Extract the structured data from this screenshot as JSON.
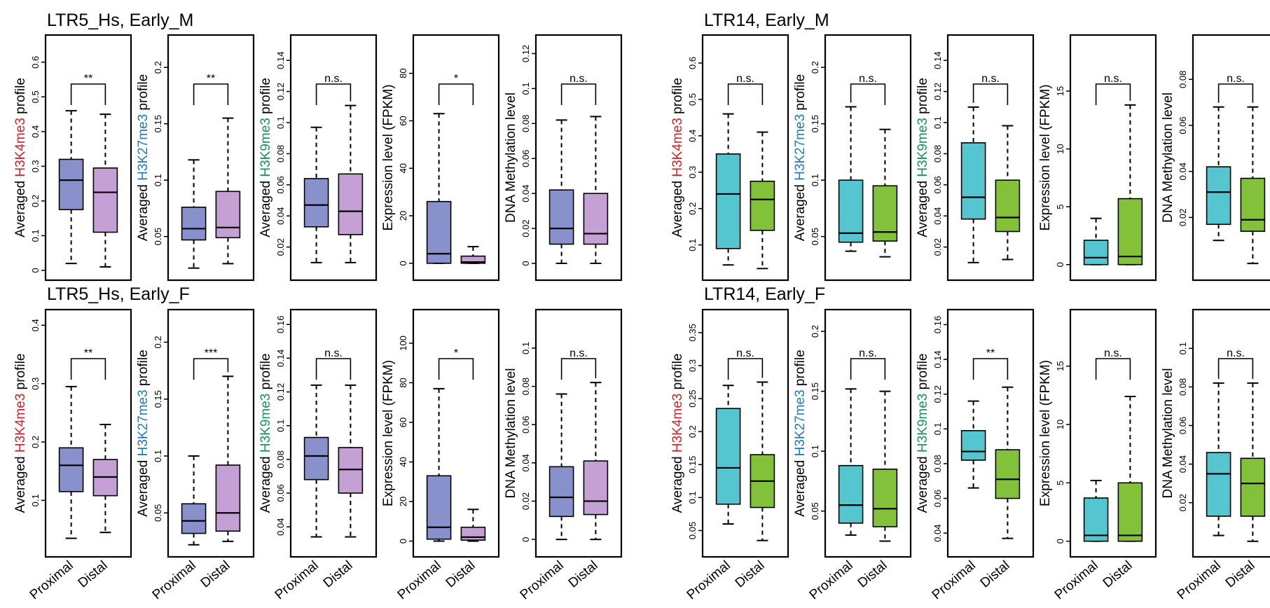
{
  "colors": {
    "ltr5_box": "#8891cc",
    "ltr5_distal_box": "#c4a0d4",
    "ltr14_proximal_box": "#55c6cf",
    "ltr14_distal_box": "#83c13a",
    "h3k4me3": "#d42128",
    "h3k27me3": "#1f7bbf",
    "h3k9me3": "#149457"
  },
  "groups": [
    "Proximal",
    "Distal"
  ],
  "chart_data": [
    {
      "title": "LTR5_Hs, Early_M",
      "type": "box",
      "palette": [
        "#8891cc",
        "#c4a0d4"
      ],
      "panels": [
        {
          "ylabel_prefix": "Averaged ",
          "ylabel_mark": "H3K4me3",
          "ylabel_suffix": " profile",
          "mark_color": "#d42128",
          "ylim": [
            0,
            0.65
          ],
          "ticks": [
            0,
            0.1,
            0.2,
            0.3,
            0.4,
            0.5,
            0.6
          ],
          "tick_labels": [
            "0",
            "0.1",
            "0.2",
            "0.3",
            "0.4",
            "0.5",
            "0.6"
          ],
          "sig": "**",
          "boxes": [
            {
              "whislo": 0.02,
              "q1": 0.175,
              "med": 0.26,
              "q3": 0.32,
              "whishi": 0.46
            },
            {
              "whislo": 0.01,
              "q1": 0.11,
              "med": 0.225,
              "q3": 0.295,
              "whishi": 0.45
            }
          ]
        },
        {
          "ylabel_prefix": "Averaged ",
          "ylabel_mark": "H3K27me3",
          "ylabel_suffix": " profile",
          "mark_color": "#1f7bbf",
          "ylim": [
            0.02,
            0.22
          ],
          "ticks": [
            0.05,
            0.1,
            0.15,
            0.2
          ],
          "tick_labels": [
            "0.05",
            "0.1",
            "0.15",
            "0.2"
          ],
          "sig": "**",
          "boxes": [
            {
              "whislo": 0.022,
              "q1": 0.047,
              "med": 0.057,
              "q3": 0.076,
              "whishi": 0.118
            },
            {
              "whislo": 0.026,
              "q1": 0.049,
              "med": 0.058,
              "q3": 0.09,
              "whishi": 0.155
            }
          ]
        },
        {
          "ylabel_prefix": "Averaged ",
          "ylabel_mark": "H3K9me3",
          "ylabel_suffix": " profile",
          "mark_color": "#149457",
          "ylim": [
            0.005,
            0.15
          ],
          "ticks": [
            0.02,
            0.04,
            0.06,
            0.08,
            0.1,
            0.12,
            0.14
          ],
          "tick_labels": [
            "0.02",
            "0.04",
            "0.06",
            "0.08",
            "0.1",
            "0.12",
            "0.14"
          ],
          "sig": "n.s.",
          "boxes": [
            {
              "whislo": 0.01,
              "q1": 0.033,
              "med": 0.047,
              "q3": 0.064,
              "whishi": 0.097
            },
            {
              "whislo": 0.01,
              "q1": 0.028,
              "med": 0.043,
              "q3": 0.067,
              "whishi": 0.111
            }
          ]
        },
        {
          "ylabel_prefix": "",
          "ylabel_mark": "",
          "ylabel_suffix": "Expression level (FPKM)",
          "mark_color": "#000000",
          "ylim": [
            -3,
            92
          ],
          "ticks": [
            0,
            20,
            40,
            60,
            80
          ],
          "tick_labels": [
            "0",
            "20",
            "40",
            "60",
            "80"
          ],
          "sig": "*",
          "boxes": [
            {
              "whislo": 0,
              "q1": 0,
              "med": 4,
              "q3": 26,
              "whishi": 63
            },
            {
              "whislo": 0,
              "q1": 0,
              "med": 0.5,
              "q3": 3,
              "whishi": 7
            }
          ]
        },
        {
          "ylabel_prefix": "",
          "ylabel_mark": "",
          "ylabel_suffix": "DNA Methylation level",
          "mark_color": "#000000",
          "ylim": [
            -0.004,
            0.125
          ],
          "ticks": [
            0,
            0.02,
            0.04,
            0.06,
            0.08,
            0.1,
            0.12
          ],
          "tick_labels": [
            "0",
            "0.02",
            "0.04",
            "0.06",
            "0.08",
            "0.1",
            "0.12"
          ],
          "sig": "n.s.",
          "boxes": [
            {
              "whislo": 0,
              "q1": 0.011,
              "med": 0.02,
              "q3": 0.042,
              "whishi": 0.082
            },
            {
              "whislo": 0,
              "q1": 0.011,
              "med": 0.017,
              "q3": 0.04,
              "whishi": 0.084
            }
          ]
        }
      ]
    },
    {
      "title": "LTR14, Early_M",
      "type": "box",
      "palette": [
        "#55c6cf",
        "#83c13a"
      ],
      "panels": [
        {
          "ylabel_prefix": "Averaged ",
          "ylabel_mark": "H3K4me3",
          "ylabel_suffix": " profile",
          "mark_color": "#d42128",
          "ylim": [
            0.03,
            0.65
          ],
          "ticks": [
            0.1,
            0.2,
            0.3,
            0.4,
            0.5,
            0.6
          ],
          "tick_labels": [
            "0.1",
            "0.2",
            "0.3",
            "0.4",
            "0.5",
            "0.6"
          ],
          "sig": "n.s.",
          "boxes": [
            {
              "whislo": 0.045,
              "q1": 0.09,
              "med": 0.24,
              "q3": 0.35,
              "whishi": 0.46
            },
            {
              "whislo": 0.035,
              "q1": 0.14,
              "med": 0.225,
              "q3": 0.275,
              "whishi": 0.41
            }
          ]
        },
        {
          "ylabel_prefix": "Averaged ",
          "ylabel_mark": "H3K27me3",
          "ylabel_suffix": " profile",
          "mark_color": "#1f7bbf",
          "ylim": [
            0.02,
            0.22
          ],
          "ticks": [
            0.05,
            0.1,
            0.15,
            0.2
          ],
          "tick_labels": [
            "0.05",
            "0.1",
            "0.15",
            "0.2"
          ],
          "sig": "n.s.",
          "boxes": [
            {
              "whislo": 0.037,
              "q1": 0.045,
              "med": 0.053,
              "q3": 0.1,
              "whishi": 0.165
            },
            {
              "whislo": 0.032,
              "q1": 0.046,
              "med": 0.054,
              "q3": 0.095,
              "whishi": 0.145
            }
          ]
        },
        {
          "ylabel_prefix": "Averaged ",
          "ylabel_mark": "H3K9me3",
          "ylabel_suffix": " profile",
          "mark_color": "#149457",
          "ylim": [
            0.005,
            0.15
          ],
          "ticks": [
            0.02,
            0.04,
            0.06,
            0.08,
            0.1,
            0.12,
            0.14
          ],
          "tick_labels": [
            "0.02",
            "0.04",
            "0.06",
            "0.08",
            "0.1",
            "0.12",
            "0.14"
          ],
          "sig": "n.s.",
          "boxes": [
            {
              "whislo": 0.01,
              "q1": 0.038,
              "med": 0.052,
              "q3": 0.087,
              "whishi": 0.11
            },
            {
              "whislo": 0.012,
              "q1": 0.03,
              "med": 0.039,
              "q3": 0.063,
              "whishi": 0.098
            }
          ]
        },
        {
          "ylabel_prefix": "",
          "ylabel_mark": "",
          "ylabel_suffix": "Expression level (FPKM)",
          "mark_color": "#000000",
          "ylim": [
            -0.5,
            19
          ],
          "ticks": [
            0,
            5,
            10,
            15
          ],
          "tick_labels": [
            "0",
            "5",
            "10",
            "15"
          ],
          "sig": "n.s.",
          "boxes": [
            {
              "whislo": 0,
              "q1": 0,
              "med": 0.6,
              "q3": 2.1,
              "whishi": 4
            },
            {
              "whislo": 0,
              "q1": 0,
              "med": 0.7,
              "q3": 5.7,
              "whishi": 13.8
            }
          ]
        },
        {
          "ylabel_prefix": "",
          "ylabel_mark": "",
          "ylabel_suffix": "DNA Methylation level",
          "mark_color": "#000000",
          "ylim": [
            -0.003,
            0.095
          ],
          "ticks": [
            0.02,
            0.04,
            0.06,
            0.08
          ],
          "tick_labels": [
            "0.02",
            "0.04",
            "0.06",
            "0.08"
          ],
          "sig": "n.s.",
          "boxes": [
            {
              "whislo": 0.01,
              "q1": 0.017,
              "med": 0.031,
              "q3": 0.042,
              "whishi": 0.068
            },
            {
              "whislo": 0,
              "q1": 0.014,
              "med": 0.019,
              "q3": 0.037,
              "whishi": 0.068
            }
          ]
        }
      ]
    },
    {
      "title": "LTR5_Hs, Early_F",
      "type": "box",
      "palette": [
        "#8891cc",
        "#c4a0d4"
      ],
      "panels": [
        {
          "ylabel_prefix": "Averaged ",
          "ylabel_mark": "H3K4me3",
          "ylabel_suffix": " profile",
          "mark_color": "#d42128",
          "ylim": [
            0.02,
            0.41
          ],
          "ticks": [
            0.1,
            0.2,
            0.3,
            0.4
          ],
          "tick_labels": [
            "0.1",
            "0.2",
            "0.3",
            "0.4"
          ],
          "sig": "**",
          "boxes": [
            {
              "whislo": 0.035,
              "q1": 0.115,
              "med": 0.16,
              "q3": 0.19,
              "whishi": 0.295
            },
            {
              "whislo": 0.045,
              "q1": 0.108,
              "med": 0.14,
              "q3": 0.17,
              "whishi": 0.23
            }
          ]
        },
        {
          "ylabel_prefix": "Averaged ",
          "ylabel_mark": "H3K27me3",
          "ylabel_suffix": " profile",
          "mark_color": "#1f7bbf",
          "ylim": [
            0.02,
            0.22
          ],
          "ticks": [
            0.05,
            0.1,
            0.15,
            0.2
          ],
          "tick_labels": [
            "0.05",
            "0.1",
            "0.15",
            "0.2"
          ],
          "sig": "***",
          "boxes": [
            {
              "whislo": 0.022,
              "q1": 0.032,
              "med": 0.043,
              "q3": 0.058,
              "whishi": 0.1
            },
            {
              "whislo": 0.025,
              "q1": 0.034,
              "med": 0.05,
              "q3": 0.092,
              "whishi": 0.17
            }
          ]
        },
        {
          "ylabel_prefix": "Averaged ",
          "ylabel_mark": "H3K9me3",
          "ylabel_suffix": " profile",
          "mark_color": "#149457",
          "ylim": [
            0.028,
            0.163
          ],
          "ticks": [
            0.04,
            0.06,
            0.08,
            0.1,
            0.12,
            0.14,
            0.16
          ],
          "tick_labels": [
            "0.04",
            "0.06",
            "0.08",
            "0.1",
            "0.12",
            "0.14",
            "0.16"
          ],
          "sig": "n.s.",
          "boxes": [
            {
              "whislo": 0.034,
              "q1": 0.068,
              "med": 0.082,
              "q3": 0.093,
              "whishi": 0.124
            },
            {
              "whislo": 0.034,
              "q1": 0.06,
              "med": 0.074,
              "q3": 0.087,
              "whishi": 0.124
            }
          ]
        },
        {
          "ylabel_prefix": "",
          "ylabel_mark": "",
          "ylabel_suffix": "Expression level (FPKM)",
          "mark_color": "#000000",
          "ylim": [
            -3,
            112
          ],
          "ticks": [
            0,
            20,
            40,
            60,
            80,
            100
          ],
          "tick_labels": [
            "0",
            "20",
            "40",
            "60",
            "80",
            "100"
          ],
          "sig": "*",
          "boxes": [
            {
              "whislo": 0,
              "q1": 1,
              "med": 7,
              "q3": 33,
              "whishi": 77
            },
            {
              "whislo": 0,
              "q1": 0.5,
              "med": 2,
              "q3": 7,
              "whishi": 16
            }
          ]
        },
        {
          "ylabel_prefix": "",
          "ylabel_mark": "",
          "ylabel_suffix": "DNA Methylation level",
          "mark_color": "#000000",
          "ylim": [
            -0.004,
            0.115
          ],
          "ticks": [
            0,
            0.02,
            0.04,
            0.06,
            0.08,
            0.1
          ],
          "tick_labels": [
            "0",
            "0.02",
            "0.04",
            "0.06",
            "0.08",
            "0.1"
          ],
          "sig": "n.s.",
          "boxes": [
            {
              "whislo": 0,
              "q1": 0.012,
              "med": 0.022,
              "q3": 0.038,
              "whishi": 0.076
            },
            {
              "whislo": 0,
              "q1": 0.013,
              "med": 0.02,
              "q3": 0.041,
              "whishi": 0.082
            }
          ]
        }
      ]
    },
    {
      "title": "LTR14, Early_F",
      "type": "box",
      "palette": [
        "#55c6cf",
        "#83c13a"
      ],
      "panels": [
        {
          "ylabel_prefix": "Averaged ",
          "ylabel_mark": "H3K4me3",
          "ylabel_suffix": " profile",
          "mark_color": "#d42128",
          "ylim": [
            0.025,
            0.37
          ],
          "ticks": [
            0.05,
            0.1,
            0.15,
            0.2,
            0.25,
            0.3,
            0.35
          ],
          "tick_labels": [
            "0.05",
            "0.1",
            "0.15",
            "0.2",
            "0.25",
            "0.3",
            "0.35"
          ],
          "sig": "n.s.",
          "boxes": [
            {
              "whislo": 0.06,
              "q1": 0.09,
              "med": 0.145,
              "q3": 0.235,
              "whishi": 0.27
            },
            {
              "whislo": 0.035,
              "q1": 0.085,
              "med": 0.125,
              "q3": 0.165,
              "whishi": 0.275
            }
          ]
        },
        {
          "ylabel_prefix": "Averaged ",
          "ylabel_mark": "H3K27me3",
          "ylabel_suffix": " profile",
          "mark_color": "#1f7bbf",
          "ylim": [
            0.02,
            0.21
          ],
          "ticks": [
            0.05,
            0.1,
            0.15,
            0.2
          ],
          "tick_labels": [
            "0.05",
            "0.1",
            "0.15",
            "0.2"
          ],
          "sig": "n.s.",
          "boxes": [
            {
              "whislo": 0.03,
              "q1": 0.04,
              "med": 0.055,
              "q3": 0.088,
              "whishi": 0.152
            },
            {
              "whislo": 0.025,
              "q1": 0.037,
              "med": 0.052,
              "q3": 0.085,
              "whishi": 0.15
            }
          ]
        },
        {
          "ylabel_prefix": "Averaged ",
          "ylabel_mark": "H3K9me3",
          "ylabel_suffix": " profile",
          "mark_color": "#149457",
          "ylim": [
            0.032,
            0.163
          ],
          "ticks": [
            0.04,
            0.06,
            0.08,
            0.1,
            0.12,
            0.14,
            0.16
          ],
          "tick_labels": [
            "0.04",
            "0.06",
            "0.08",
            "0.1",
            "0.12",
            "0.14",
            "0.16"
          ],
          "sig": "**",
          "boxes": [
            {
              "whislo": 0.066,
              "q1": 0.082,
              "med": 0.087,
              "q3": 0.099,
              "whishi": 0.116
            },
            {
              "whislo": 0.037,
              "q1": 0.06,
              "med": 0.071,
              "q3": 0.088,
              "whishi": 0.124
            }
          ]
        },
        {
          "ylabel_prefix": "",
          "ylabel_mark": "",
          "ylabel_suffix": "Expression level (FPKM)",
          "mark_color": "#000000",
          "ylim": [
            -0.5,
            19
          ],
          "ticks": [
            0,
            5,
            10,
            15
          ],
          "tick_labels": [
            "0",
            "5",
            "10",
            "15"
          ],
          "sig": "n.s.",
          "boxes": [
            {
              "whislo": 0,
              "q1": 0,
              "med": 0.5,
              "q3": 3.7,
              "whishi": 5.2
            },
            {
              "whislo": 0,
              "q1": 0,
              "med": 0.5,
              "q3": 5,
              "whishi": 12.4
            }
          ]
        },
        {
          "ylabel_prefix": "",
          "ylabel_mark": "",
          "ylabel_suffix": "DNA Methylation level",
          "mark_color": "#000000",
          "ylim": [
            -0.003,
            0.115
          ],
          "ticks": [
            0.02,
            0.04,
            0.06,
            0.08,
            0.1
          ],
          "tick_labels": [
            "0.02",
            "0.04",
            "0.06",
            "0.08",
            "0.1"
          ],
          "sig": "n.s.",
          "boxes": [
            {
              "whislo": 0.003,
              "q1": 0.013,
              "med": 0.035,
              "q3": 0.046,
              "whishi": 0.082
            },
            {
              "whislo": 0,
              "q1": 0.013,
              "med": 0.03,
              "q3": 0.043,
              "whishi": 0.082
            }
          ]
        }
      ]
    }
  ]
}
